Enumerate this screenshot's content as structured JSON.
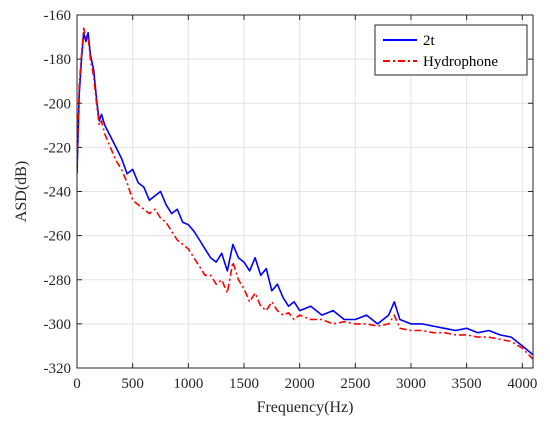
{
  "chart_data": {
    "type": "line",
    "title": "",
    "xlabel": "Frequency(Hz)",
    "ylabel": "ASD(dB)",
    "xlim": [
      0,
      4096
    ],
    "ylim": [
      -320,
      -160
    ],
    "xticks": [
      0,
      500,
      1000,
      1500,
      2000,
      2500,
      3000,
      3500,
      4000
    ],
    "yticks": [
      -320,
      -300,
      -280,
      -260,
      -240,
      -220,
      -200,
      -180,
      -160
    ],
    "grid": true,
    "legend_position": "top-right",
    "series": [
      {
        "name": "2t",
        "color": "#0000ff",
        "line_style": "solid",
        "x": [
          0,
          20,
          40,
          60,
          80,
          100,
          120,
          150,
          180,
          200,
          220,
          250,
          300,
          350,
          400,
          450,
          500,
          550,
          600,
          650,
          700,
          750,
          800,
          850,
          900,
          950,
          1000,
          1050,
          1100,
          1150,
          1200,
          1250,
          1300,
          1350,
          1400,
          1450,
          1500,
          1550,
          1600,
          1650,
          1700,
          1750,
          1800,
          1850,
          1900,
          1950,
          2000,
          2100,
          2200,
          2300,
          2400,
          2500,
          2600,
          2700,
          2800,
          2850,
          2900,
          3000,
          3100,
          3200,
          3300,
          3400,
          3500,
          3600,
          3700,
          3800,
          3900,
          4000,
          4096
        ],
        "y": [
          -232,
          -196,
          -180,
          -168,
          -172,
          -168,
          -178,
          -185,
          -200,
          -208,
          -205,
          -210,
          -215,
          -220,
          -225,
          -232,
          -230,
          -236,
          -238,
          -244,
          -242,
          -240,
          -246,
          -250,
          -248,
          -254,
          -255,
          -258,
          -262,
          -266,
          -270,
          -272,
          -268,
          -276,
          -264,
          -270,
          -272,
          -276,
          -270,
          -278,
          -275,
          -285,
          -282,
          -288,
          -292,
          -290,
          -294,
          -292,
          -296,
          -294,
          -298,
          -298,
          -296,
          -300,
          -296,
          -290,
          -298,
          -300,
          -300,
          -301,
          -302,
          -303,
          -302,
          -304,
          -303,
          -305,
          -306,
          -310,
          -314
        ]
      },
      {
        "name": "Hydrophone",
        "color": "#ff0000",
        "line_style": "dashdot",
        "x": [
          0,
          20,
          40,
          60,
          80,
          100,
          120,
          150,
          180,
          200,
          220,
          250,
          300,
          350,
          400,
          450,
          500,
          550,
          600,
          650,
          700,
          750,
          800,
          850,
          900,
          950,
          1000,
          1050,
          1100,
          1150,
          1200,
          1250,
          1300,
          1350,
          1400,
          1450,
          1500,
          1550,
          1600,
          1650,
          1700,
          1750,
          1800,
          1850,
          1900,
          1950,
          2000,
          2100,
          2200,
          2300,
          2400,
          2500,
          2600,
          2700,
          2800,
          2850,
          2900,
          3000,
          3100,
          3200,
          3300,
          3400,
          3500,
          3600,
          3700,
          3800,
          3900,
          4000,
          4096
        ],
        "y": [
          -228,
          -192,
          -178,
          -166,
          -170,
          -170,
          -180,
          -188,
          -202,
          -210,
          -208,
          -214,
          -220,
          -226,
          -230,
          -236,
          -244,
          -246,
          -248,
          -250,
          -248,
          -252,
          -254,
          -258,
          -262,
          -264,
          -266,
          -270,
          -274,
          -278,
          -278,
          -282,
          -280,
          -286,
          -272,
          -280,
          -284,
          -290,
          -286,
          -292,
          -294,
          -290,
          -294,
          -296,
          -295,
          -298,
          -296,
          -298,
          -298,
          -300,
          -299,
          -300,
          -300,
          -301,
          -300,
          -296,
          -302,
          -303,
          -303,
          -304,
          -304,
          -305,
          -305,
          -306,
          -306,
          -307,
          -308,
          -311,
          -316
        ]
      }
    ]
  }
}
